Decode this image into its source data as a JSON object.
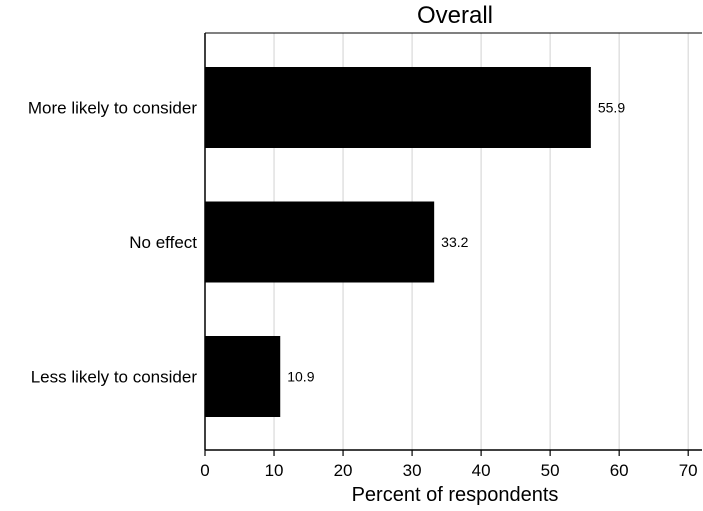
{
  "chart_data": {
    "type": "bar",
    "orientation": "horizontal",
    "title": "Overall",
    "xlabel": "Percent of respondents",
    "ylabel": "",
    "categories": [
      "More likely to consider",
      "No effect",
      "Less likely to consider"
    ],
    "values": [
      55.9,
      33.2,
      10.9
    ],
    "value_labels": [
      "55.9",
      "33.2",
      "10.9"
    ],
    "xlim": [
      0,
      72
    ],
    "xticks": [
      0,
      10,
      20,
      30,
      40,
      50,
      60,
      70
    ],
    "xtick_labels": [
      "0",
      "10",
      "20",
      "30",
      "40",
      "50",
      "60",
      "70"
    ],
    "grid": "vertical",
    "legend": "none",
    "colors": {
      "bar": "#000000",
      "grid": "#d9d9d9",
      "axis": "#000000",
      "background": "#ffffff"
    }
  }
}
